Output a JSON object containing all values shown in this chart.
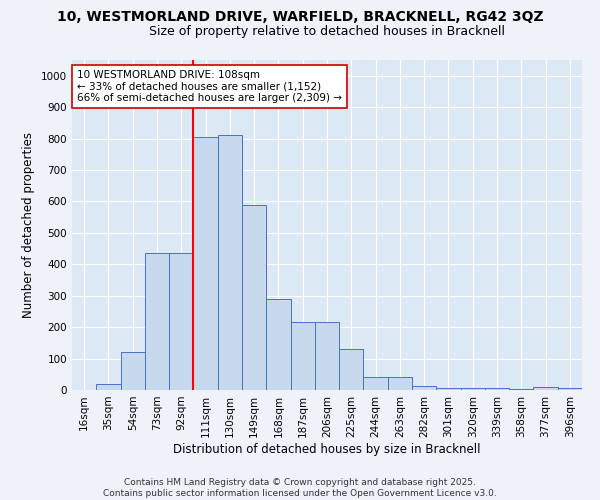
{
  "title_line1": "10, WESTMORLAND DRIVE, WARFIELD, BRACKNELL, RG42 3QZ",
  "title_line2": "Size of property relative to detached houses in Bracknell",
  "xlabel": "Distribution of detached houses by size in Bracknell",
  "ylabel": "Number of detached properties",
  "categories": [
    "16sqm",
    "35sqm",
    "54sqm",
    "73sqm",
    "92sqm",
    "111sqm",
    "130sqm",
    "149sqm",
    "168sqm",
    "187sqm",
    "206sqm",
    "225sqm",
    "244sqm",
    "263sqm",
    "282sqm",
    "301sqm",
    "320sqm",
    "339sqm",
    "358sqm",
    "377sqm",
    "396sqm"
  ],
  "values": [
    0,
    20,
    120,
    435,
    435,
    805,
    810,
    590,
    290,
    215,
    215,
    130,
    42,
    42,
    12,
    7,
    5,
    5,
    3,
    8,
    5
  ],
  "bar_color": "#c8d9ed",
  "bar_edge_color": "#4472c4",
  "red_line_index": 4.5,
  "annotation_text": "10 WESTMORLAND DRIVE: 108sqm\n← 33% of detached houses are smaller (1,152)\n66% of semi-detached houses are larger (2,309) →",
  "annotation_box_facecolor": "#ffffff",
  "annotation_box_edgecolor": "#cc0000",
  "fig_facecolor": "#eef2f9",
  "ax_facecolor": "#dce9f5",
  "grid_color": "#ffffff",
  "ylim": [
    0,
    1050
  ],
  "yticks": [
    0,
    100,
    200,
    300,
    400,
    500,
    600,
    700,
    800,
    900,
    1000
  ],
  "footer_text": "Contains HM Land Registry data © Crown copyright and database right 2025.\nContains public sector information licensed under the Open Government Licence v3.0.",
  "title_fontsize": 10,
  "subtitle_fontsize": 9,
  "axis_label_fontsize": 8.5,
  "tick_fontsize": 7.5,
  "annotation_fontsize": 7.5,
  "footer_fontsize": 6.5
}
